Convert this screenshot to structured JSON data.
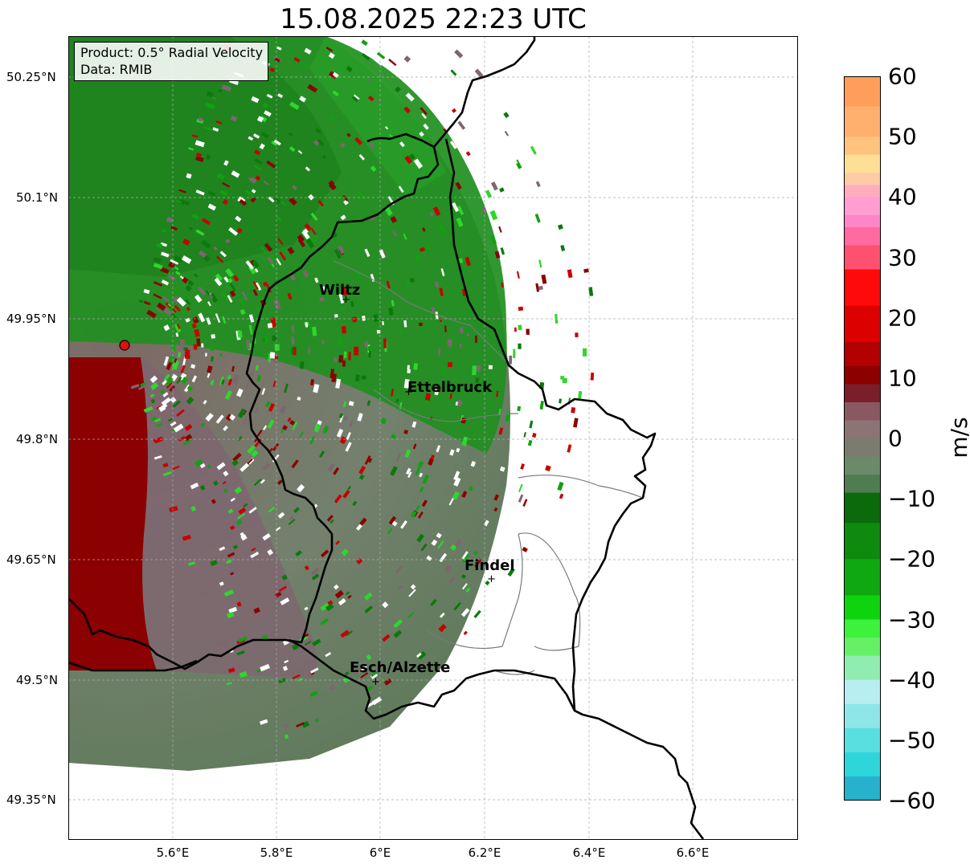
{
  "title": "15.08.2025 22:23 UTC",
  "info": {
    "product": "Product: 0.5° Radial Velocity",
    "data_source": "Data: RMIB"
  },
  "axes": {
    "lat_labels": [
      "50.25°N",
      "50.1°N",
      "49.95°N",
      "49.8°N",
      "49.65°N",
      "49.5°N",
      "49.35°N"
    ],
    "lon_labels": [
      "5.6°E",
      "5.8°E",
      "6°E",
      "6.2°E",
      "6.4°E",
      "6.6°E"
    ]
  },
  "cities": [
    {
      "name": "Wiltz"
    },
    {
      "name": "Ettelbruck"
    },
    {
      "name": "Findel"
    },
    {
      "name": "Esch/Alzette"
    }
  ],
  "colorbar": {
    "unit": "m/s",
    "tick_labels": [
      "60",
      "50",
      "40",
      "30",
      "20",
      "10",
      "0",
      "−10",
      "−20",
      "−30",
      "−40",
      "−50",
      "−60"
    ],
    "range": [
      -60,
      60
    ]
  },
  "colors": {
    "inbound_green": "#1f8f1f",
    "outbound_red": "#8b0000",
    "zero_gray": "#7e7a74",
    "border": "#000000"
  }
}
